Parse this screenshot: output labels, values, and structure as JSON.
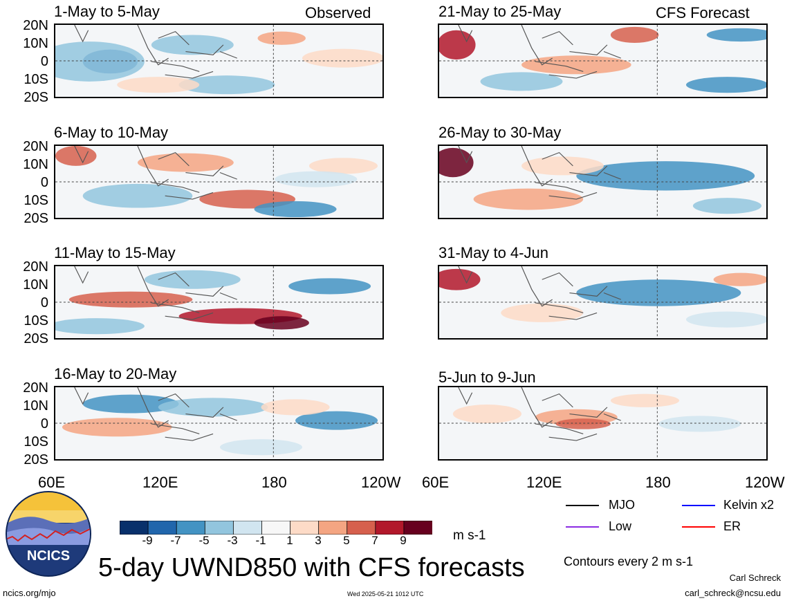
{
  "headers": {
    "left": "Observed",
    "right": "CFS Forecast"
  },
  "panels": [
    {
      "period": "1-May to 5-May"
    },
    {
      "period": "6-May to 10-May"
    },
    {
      "period": "11-May to 15-May"
    },
    {
      "period": "16-May to 20-May"
    },
    {
      "period": "21-May to 25-May"
    },
    {
      "period": "26-May to 30-May"
    },
    {
      "period": "31-May to 4-Jun"
    },
    {
      "period": "5-Jun to 9-Jun"
    }
  ],
  "lat_ticks": [
    "20N",
    "10N",
    "0",
    "10S",
    "20S"
  ],
  "lon_ticks": [
    "60E",
    "120E",
    "180",
    "120W"
  ],
  "colorbar": {
    "labels": [
      "-9",
      "-7",
      "-5",
      "-3",
      "-1",
      "1",
      "3",
      "5",
      "7",
      "9"
    ],
    "colors": [
      "#08306b",
      "#2166ac",
      "#4393c3",
      "#92c5de",
      "#d1e5f0",
      "#f7f7f7",
      "#fddbc7",
      "#f4a582",
      "#d6604d",
      "#b2182b",
      "#67001f"
    ],
    "units": "m s-1"
  },
  "legend": {
    "items": [
      {
        "label": "MJO",
        "color": "#000000"
      },
      {
        "label": "Kelvin x2",
        "color": "#0000ff"
      },
      {
        "label": "Low",
        "color": "#8a2be2"
      },
      {
        "label": "ER",
        "color": "#ff0000"
      }
    ],
    "note": "Contours every 2 m s-1"
  },
  "title": "5-day UWND850 with CFS forecasts",
  "logo_text": "NCICS",
  "footer": {
    "url": "ncics.org/mjo",
    "timestamp": "Wed 2025-05-21 1012 UTC",
    "author": "Carl Schreck",
    "email": "carl_schreck@ncsu.edu"
  }
}
